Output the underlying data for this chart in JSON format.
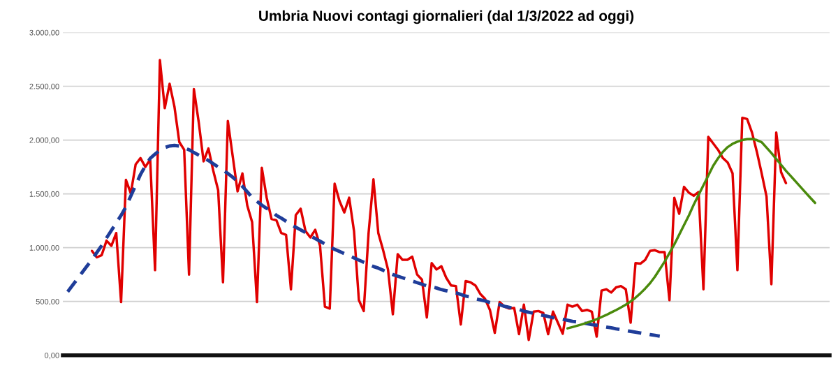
{
  "chart_data": {
    "type": "line",
    "title": "Umbria Nuovi contagi giornalieri (dal 1/3/2022 ad oggi)",
    "categories": [
      null,
      null,
      null,
      null,
      null,
      null,
      null,
      null,
      null,
      null,
      null,
      null,
      null,
      null,
      null,
      null,
      null,
      null,
      null,
      null,
      null,
      null,
      null,
      null,
      null,
      null,
      null,
      null,
      null,
      null,
      null,
      null,
      null,
      null,
      null,
      null,
      null,
      null,
      null,
      null,
      null,
      null,
      null,
      null,
      null,
      null,
      null,
      null,
      null,
      null,
      null,
      null,
      null,
      null,
      null,
      null,
      null,
      null,
      null,
      null,
      null,
      null,
      null,
      null,
      null,
      null,
      null,
      null,
      null,
      null,
      null,
      null,
      null,
      null,
      null,
      null,
      null,
      null,
      null,
      null,
      null,
      null,
      null,
      null,
      null,
      null,
      null,
      null,
      null,
      null,
      null,
      null,
      null,
      null,
      null,
      null,
      null,
      null,
      null,
      null,
      null,
      null,
      null,
      null,
      null,
      null,
      null,
      null,
      null,
      null,
      null,
      null,
      null,
      null,
      null,
      null,
      null,
      null,
      null,
      null,
      null,
      null,
      null,
      null,
      null,
      null,
      null,
      null,
      null,
      null,
      null,
      null,
      null,
      null,
      null,
      null,
      null,
      null,
      null,
      null,
      null,
      null,
      null,
      null,
      null,
      null,
      null,
      null,
      null,
      null,
      null,
      null,
      null,
      null,
      null
    ],
    "series": [
      {
        "color": "#e00000",
        "line_style": "solid",
        "values": [
          null,
          null,
          null,
          null,
          null,
          970,
          910,
          930,
          1065,
          1017,
          1136,
          494,
          1630,
          1505,
          1773,
          1833,
          1750,
          1821,
          791,
          2743,
          2297,
          2523,
          2309,
          1981,
          1910,
          750,
          2475,
          2166,
          1803,
          1922,
          1714,
          1535,
          678,
          2178,
          1850,
          1523,
          1690,
          1392,
          1238,
          494,
          1743,
          1464,
          1267,
          1255,
          1136,
          1119,
          613,
          1303,
          1362,
          1154,
          1095,
          1166,
          1017,
          452,
          434,
          1595,
          1434,
          1327,
          1464,
          1154,
          512,
          411,
          1136,
          1636,
          1136,
          976,
          797,
          381,
          940,
          887,
          887,
          916,
          750,
          702,
          351,
          857,
          797,
          827,
          720,
          649,
          643,
          286,
          690,
          678,
          649,
          571,
          524,
          422,
          208,
          494,
          452,
          434,
          440,
          196,
          470,
          143,
          405,
          411,
          393,
          196,
          405,
          303,
          200,
          470,
          452,
          470,
          411,
          422,
          405,
          173,
          601,
          613,
          583,
          631,
          643,
          613,
          303,
          857,
          851,
          887,
          970,
          976,
          958,
          958,
          512,
          1464,
          1315,
          1565,
          1511,
          1482,
          1517,
          613,
          2029,
          1970,
          1910,
          1833,
          1791,
          1690,
          791,
          2207,
          2196,
          2071,
          1892,
          1690,
          1476,
          660,
          2071,
          1702,
          1600,
          null,
          null,
          null,
          null,
          null,
          null
        ]
      },
      {
        "color": "#1f3d99",
        "line_style": "dashed",
        "values": [
          590,
          650,
          710,
          770,
          830,
          890,
          955,
          1020,
          1090,
          1160,
          1230,
          1300,
          1380,
          1480,
          1580,
          1680,
          1760,
          1830,
          1870,
          1905,
          1930,
          1945,
          1950,
          1945,
          1930,
          1910,
          1885,
          1860,
          1835,
          1810,
          1780,
          1750,
          1720,
          1690,
          1655,
          1615,
          1570,
          1520,
          1465,
          1430,
          1395,
          1365,
          1340,
          1300,
          1275,
          1245,
          1215,
          1190,
          1165,
          1140,
          1110,
          1085,
          1060,
          1035,
          1005,
          985,
          965,
          945,
          925,
          905,
          885,
          865,
          845,
          825,
          810,
          790,
          770,
          750,
          735,
          720,
          705,
          690,
          675,
          660,
          645,
          635,
          625,
          610,
          600,
          590,
          580,
          565,
          550,
          540,
          525,
          515,
          505,
          490,
          480,
          470,
          455,
          445,
          435,
          425,
          410,
          400,
          390,
          380,
          370,
          360,
          350,
          340,
          335,
          325,
          315,
          310,
          300,
          295,
          285,
          280,
          270,
          262,
          255,
          245,
          238,
          230,
          222,
          215,
          207,
          200,
          192,
          185,
          178,
          null,
          null,
          null,
          null,
          null,
          null,
          null,
          null,
          null,
          null,
          null,
          null,
          null,
          null,
          null,
          null,
          null,
          null,
          null,
          null,
          null,
          null,
          null,
          null,
          null,
          null,
          null,
          null,
          null,
          null,
          null,
          null
        ]
      },
      {
        "color": "#4a8a0c",
        "line_style": "solid",
        "values": [
          null,
          null,
          null,
          null,
          null,
          null,
          null,
          null,
          null,
          null,
          null,
          null,
          null,
          null,
          null,
          null,
          null,
          null,
          null,
          null,
          null,
          null,
          null,
          null,
          null,
          null,
          null,
          null,
          null,
          null,
          null,
          null,
          null,
          null,
          null,
          null,
          null,
          null,
          null,
          null,
          null,
          null,
          null,
          null,
          null,
          null,
          null,
          null,
          null,
          null,
          null,
          null,
          null,
          null,
          null,
          null,
          null,
          null,
          null,
          null,
          null,
          null,
          null,
          null,
          null,
          null,
          null,
          null,
          null,
          null,
          null,
          null,
          null,
          null,
          null,
          null,
          null,
          null,
          null,
          null,
          null,
          null,
          null,
          null,
          null,
          null,
          null,
          null,
          null,
          null,
          null,
          null,
          null,
          null,
          null,
          null,
          null,
          null,
          null,
          null,
          null,
          null,
          null,
          250,
          262,
          275,
          288,
          302,
          318,
          335,
          355,
          375,
          398,
          420,
          445,
          470,
          500,
          535,
          575,
          620,
          670,
          730,
          800,
          870,
          950,
          1030,
          1120,
          1210,
          1300,
          1400,
          1490,
          1580,
          1670,
          1760,
          1830,
          1890,
          1935,
          1965,
          1985,
          2000,
          2008,
          2010,
          2000,
          1980,
          1930,
          1880,
          1825,
          1770,
          1714,
          1665,
          1615,
          1565,
          1515,
          1465,
          1416
        ]
      }
    ],
    "ylim": [
      0,
      3000
    ],
    "yticks": [
      {
        "value": 0,
        "label": "0,00"
      },
      {
        "value": 500,
        "label": "500,00"
      },
      {
        "value": 1000,
        "label": "1.000,00"
      },
      {
        "value": 1500,
        "label": "1.500,00"
      },
      {
        "value": 2000,
        "label": "2.000,00"
      },
      {
        "value": 2500,
        "label": "2.500,00"
      },
      {
        "value": 3000,
        "label": "3.000,00"
      }
    ],
    "grid": "y",
    "tick_labels": "y",
    "legend": false,
    "marker": "none"
  }
}
